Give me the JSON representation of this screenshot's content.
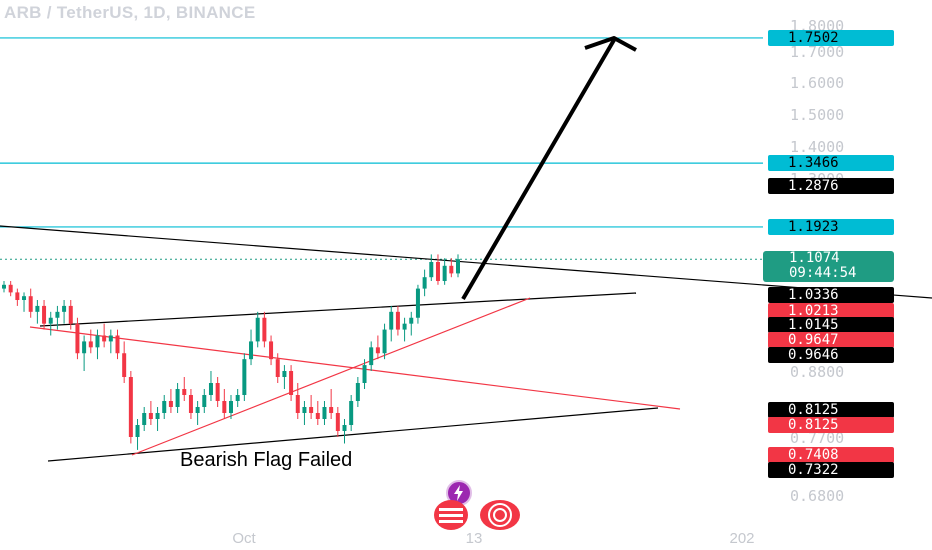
{
  "header": {
    "title": "ARB / TetherUS, 1D, BINANCE"
  },
  "chart_data": {
    "type": "candlestick",
    "symbol": "ARB / TetherUS",
    "interval": "1D",
    "exchange": "BINANCE",
    "y_axis_labels": [
      1.8,
      1.7,
      1.6,
      1.5,
      1.4,
      1.3,
      1.2,
      1.0,
      0.88,
      0.77,
      0.68
    ],
    "y_axis_labels_text": [
      "1.8000",
      "1.7000",
      "1.6000",
      "1.5000",
      "1.4000",
      "1.3000",
      "1.2000",
      "1.0000",
      "0.8800",
      "0.7700",
      "0.6800"
    ],
    "x_axis_labels": [
      "Oct",
      "13",
      "202"
    ],
    "horizontal_levels": [
      {
        "value": 1.7502,
        "label": "1.7502",
        "color": "#00bcd4"
      },
      {
        "value": 1.3466,
        "label": "1.3466",
        "color": "#00bcd4"
      },
      {
        "value": 1.1923,
        "label": "1.1923",
        "color": "#00bcd4"
      }
    ],
    "current_price": {
      "value": 1.1074,
      "label": "1.1074",
      "countdown": "09:44:54",
      "color": "#1f9c83"
    },
    "price_badges": [
      {
        "label": "1.2876",
        "value": 1.2876,
        "bg": "#000000",
        "fg": "#ffffff"
      },
      {
        "label": "1.0336",
        "value": 1.0336,
        "bg": "#000000",
        "fg": "#ffffff"
      },
      {
        "label": "1.0213",
        "value": 1.0213,
        "bg": "#f23645",
        "fg": "#ffffff"
      },
      {
        "label": "1.0145",
        "value": 1.0145,
        "bg": "#000000",
        "fg": "#ffffff"
      },
      {
        "label": "0.9647",
        "value": 0.9647,
        "bg": "#f23645",
        "fg": "#ffffff"
      },
      {
        "label": "0.9646",
        "value": 0.9646,
        "bg": "#000000",
        "fg": "#ffffff"
      },
      {
        "label": "0.8125",
        "value": 0.8125,
        "bg": "#000000",
        "fg": "#ffffff"
      },
      {
        "label": "0.8125",
        "value": 0.8125,
        "bg": "#f23645",
        "fg": "#ffffff"
      },
      {
        "label": "0.7408",
        "value": 0.7408,
        "bg": "#f23645",
        "fg": "#ffffff"
      },
      {
        "label": "0.7322",
        "value": 0.7322,
        "bg": "#000000",
        "fg": "#ffffff"
      }
    ],
    "annotation": "Bearish Flag Failed",
    "candles_ohlc": [
      [
        1.03,
        1.05,
        1.02,
        1.04
      ],
      [
        1.04,
        1.05,
        1.01,
        1.02
      ],
      [
        1.02,
        1.03,
        0.99,
        1.0
      ],
      [
        1.0,
        1.02,
        0.98,
        1.01
      ],
      [
        1.01,
        1.03,
        0.97,
        0.98
      ],
      [
        0.98,
        1.0,
        0.96,
        0.99
      ],
      [
        0.99,
        1.0,
        0.95,
        0.96
      ],
      [
        0.96,
        0.98,
        0.94,
        0.97
      ],
      [
        0.97,
        0.99,
        0.95,
        0.98
      ],
      [
        0.98,
        1.0,
        0.96,
        0.99
      ],
      [
        0.99,
        1.0,
        0.95,
        0.96
      ],
      [
        0.96,
        0.97,
        0.9,
        0.91
      ],
      [
        0.91,
        0.94,
        0.88,
        0.93
      ],
      [
        0.93,
        0.95,
        0.91,
        0.92
      ],
      [
        0.92,
        0.95,
        0.9,
        0.94
      ],
      [
        0.94,
        0.96,
        0.92,
        0.93
      ],
      [
        0.93,
        0.95,
        0.91,
        0.94
      ],
      [
        0.94,
        0.95,
        0.9,
        0.91
      ],
      [
        0.91,
        0.93,
        0.86,
        0.87
      ],
      [
        0.87,
        0.88,
        0.76,
        0.77
      ],
      [
        0.77,
        0.8,
        0.75,
        0.79
      ],
      [
        0.79,
        0.82,
        0.78,
        0.81
      ],
      [
        0.81,
        0.83,
        0.79,
        0.8
      ],
      [
        0.8,
        0.82,
        0.78,
        0.81
      ],
      [
        0.81,
        0.84,
        0.8,
        0.83
      ],
      [
        0.83,
        0.85,
        0.81,
        0.82
      ],
      [
        0.82,
        0.86,
        0.81,
        0.85
      ],
      [
        0.85,
        0.87,
        0.83,
        0.84
      ],
      [
        0.84,
        0.85,
        0.8,
        0.81
      ],
      [
        0.81,
        0.83,
        0.79,
        0.82
      ],
      [
        0.82,
        0.85,
        0.81,
        0.84
      ],
      [
        0.84,
        0.88,
        0.83,
        0.86
      ],
      [
        0.86,
        0.87,
        0.82,
        0.83
      ],
      [
        0.83,
        0.85,
        0.8,
        0.81
      ],
      [
        0.81,
        0.84,
        0.8,
        0.83
      ],
      [
        0.83,
        0.85,
        0.82,
        0.84
      ],
      [
        0.84,
        0.91,
        0.83,
        0.9
      ],
      [
        0.9,
        0.95,
        0.89,
        0.93
      ],
      [
        0.93,
        0.98,
        0.92,
        0.97
      ],
      [
        0.97,
        0.98,
        0.92,
        0.93
      ],
      [
        0.93,
        0.94,
        0.89,
        0.9
      ],
      [
        0.9,
        0.91,
        0.86,
        0.87
      ],
      [
        0.87,
        0.89,
        0.85,
        0.88
      ],
      [
        0.88,
        0.89,
        0.83,
        0.84
      ],
      [
        0.84,
        0.86,
        0.8,
        0.81
      ],
      [
        0.81,
        0.83,
        0.79,
        0.82
      ],
      [
        0.82,
        0.84,
        0.8,
        0.81
      ],
      [
        0.81,
        0.83,
        0.79,
        0.8
      ],
      [
        0.8,
        0.83,
        0.79,
        0.82
      ],
      [
        0.82,
        0.85,
        0.8,
        0.81
      ],
      [
        0.81,
        0.82,
        0.77,
        0.78
      ],
      [
        0.78,
        0.8,
        0.76,
        0.79
      ],
      [
        0.79,
        0.84,
        0.78,
        0.83
      ],
      [
        0.83,
        0.87,
        0.82,
        0.86
      ],
      [
        0.86,
        0.9,
        0.85,
        0.89
      ],
      [
        0.89,
        0.93,
        0.88,
        0.92
      ],
      [
        0.92,
        0.94,
        0.9,
        0.91
      ],
      [
        0.91,
        0.96,
        0.9,
        0.95
      ],
      [
        0.95,
        0.99,
        0.93,
        0.98
      ],
      [
        0.98,
        0.99,
        0.94,
        0.95
      ],
      [
        0.95,
        0.97,
        0.93,
        0.96
      ],
      [
        0.96,
        0.98,
        0.94,
        0.97
      ],
      [
        0.97,
        1.04,
        0.96,
        1.03
      ],
      [
        1.03,
        1.08,
        1.01,
        1.06
      ],
      [
        1.06,
        1.12,
        1.05,
        1.1
      ],
      [
        1.1,
        1.12,
        1.04,
        1.05
      ],
      [
        1.05,
        1.11,
        1.04,
        1.09
      ],
      [
        1.09,
        1.11,
        1.06,
        1.07
      ],
      [
        1.07,
        1.12,
        1.06,
        1.1074
      ]
    ]
  }
}
